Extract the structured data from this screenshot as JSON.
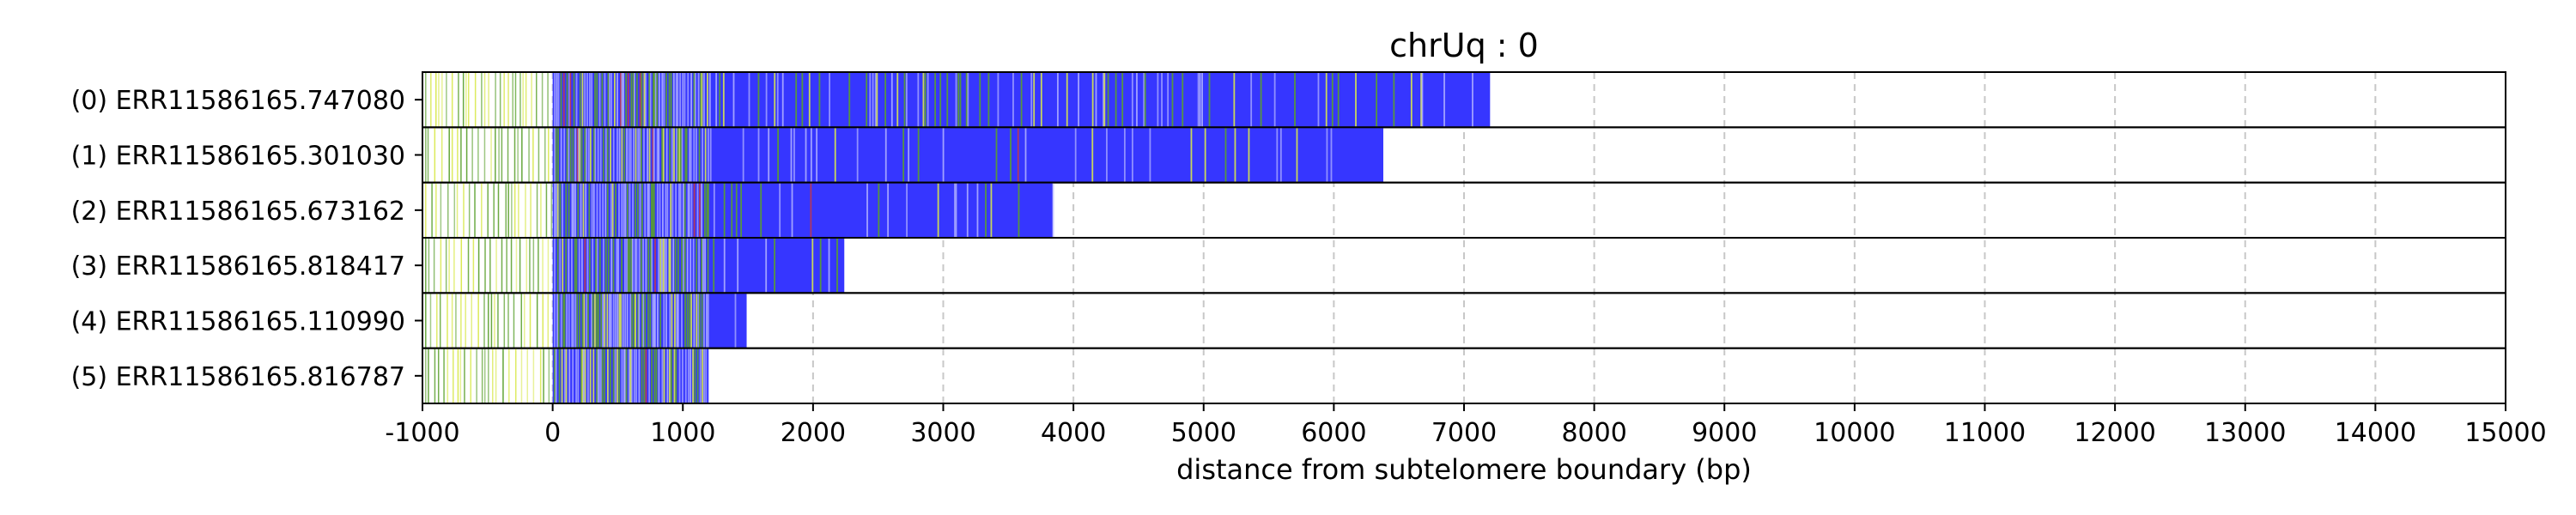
{
  "chart_data": {
    "type": "bar",
    "title": "chrUq : 0",
    "xlabel": "distance from subtelomere boundary (bp)",
    "ylabel": "",
    "xlim": [
      -1000,
      15000
    ],
    "xticks": [
      -1000,
      0,
      1000,
      2000,
      3000,
      4000,
      5000,
      6000,
      7000,
      8000,
      9000,
      10000,
      11000,
      12000,
      13000,
      14000,
      15000
    ],
    "grid": "vertical dashed",
    "colors": {
      "fill": "#3636ff",
      "accent_green": "#5aa02c",
      "accent_yellow": "#d8e84a",
      "accent_red": "#d03a3a"
    },
    "reads": [
      {
        "label": "(0) ERR11586165.747080",
        "start": -1000,
        "end": 7200
      },
      {
        "label": "(1) ERR11586165.301030",
        "start": -1000,
        "end": 6380
      },
      {
        "label": "(2) ERR11586165.673162",
        "start": -1000,
        "end": 3840
      },
      {
        "label": "(3) ERR11586165.818417",
        "start": -1000,
        "end": 2240
      },
      {
        "label": "(4) ERR11586165.110990",
        "start": -1000,
        "end": 1490
      },
      {
        "label": "(5) ERR11586165.816787",
        "start": -1000,
        "end": 1200
      }
    ]
  }
}
